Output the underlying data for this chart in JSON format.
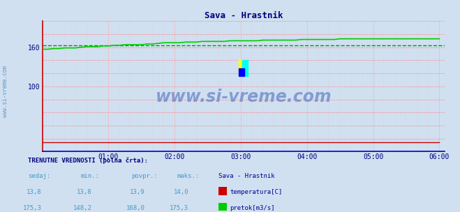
{
  "title": "Sava - Hrastnik",
  "title_color": "#000080",
  "bg_color": "#d0e0f0",
  "plot_bg_color": "#d0e0f0",
  "grid_color_h": "#ff8888",
  "grid_color_v": "#ffaaaa",
  "xmin": 0,
  "xmax": 73,
  "ymin": 0,
  "ymax": 200,
  "ytick_positions": [
    0,
    20,
    40,
    60,
    80,
    100,
    120,
    140,
    160,
    180,
    200
  ],
  "ytick_labels_show": [
    100,
    160
  ],
  "xtick_labels": [
    "01:00",
    "02:00",
    "03:00",
    "04:00",
    "05:00",
    "06:00"
  ],
  "xtick_positions": [
    12,
    24,
    36,
    48,
    60,
    72
  ],
  "watermark_text": "www.si-vreme.com",
  "watermark_color": "#4466bb",
  "sidebar_text": "www.si-vreme.com",
  "sidebar_color": "#5588bb",
  "temp_color": "#cc0000",
  "flow_color": "#00cc00",
  "flow_avg_color": "#009900",
  "flow_avg": 163.0,
  "footer_title_color": "#000080",
  "footer_label_color": "#4499cc",
  "footer_value_color": "#4499cc",
  "footer_station_color": "#000099",
  "legend_temp_color": "#cc0000",
  "legend_flow_color": "#00cc00",
  "axis_bottom_color": "#0000cc",
  "axis_left_color": "#cc0000",
  "axis_arrow_color": "#cc0000"
}
